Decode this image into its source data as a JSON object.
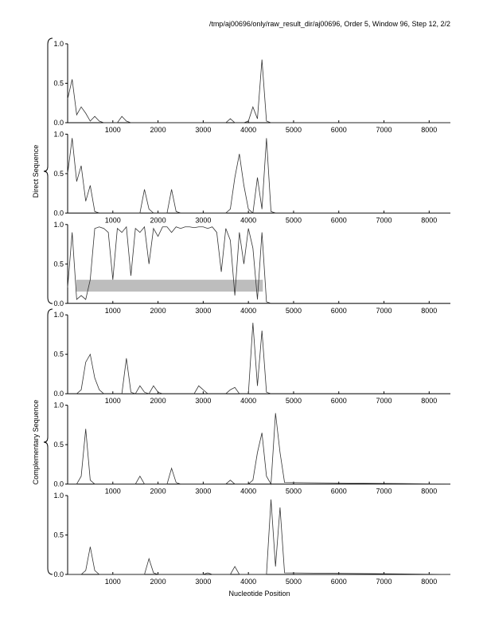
{
  "chart_data": [
    {
      "type": "line",
      "title": "/tmp/aj00696/only/raw_result_dir/aj00696, Order 5, Window 96, Step 12, 2/2",
      "color": "#333333",
      "x": [
        0,
        100,
        200,
        300,
        400,
        500,
        600,
        700,
        800,
        900,
        1000,
        1100,
        1200,
        1300,
        1400,
        1500,
        1600,
        1700,
        1800,
        1900,
        2000,
        2100,
        2200,
        2300,
        2400,
        2500,
        2600,
        2700,
        2800,
        2900,
        3000,
        3100,
        3200,
        3300,
        3400,
        3500,
        3600,
        3700,
        3800,
        3900,
        4000,
        4100,
        4200,
        4300,
        4400,
        4500,
        4600,
        4700,
        4800,
        8470
      ],
      "values": [
        0.3,
        0.55,
        0.1,
        0.2,
        0.12,
        0.02,
        0.08,
        0.02,
        0,
        0,
        0,
        0,
        0.08,
        0.02,
        0,
        0,
        0,
        0,
        0,
        0,
        0,
        0,
        0,
        0,
        0,
        0,
        0,
        0,
        0,
        0,
        0,
        0,
        0,
        0,
        0,
        0,
        0.05,
        0,
        0,
        0,
        0.02,
        0.2,
        0.05,
        0.8,
        0.02,
        0,
        0,
        0,
        0,
        0
      ],
      "xlim": [
        0,
        8470
      ],
      "ylim": [
        0,
        1
      ],
      "xticks": [
        1000,
        2000,
        3000,
        4000,
        5000,
        6000,
        7000,
        8000
      ],
      "yticks": [
        {
          "value": 0,
          "label": "0.0"
        },
        {
          "value": 0.5,
          "label": "0.5"
        },
        {
          "value": 1,
          "label": "1.0"
        }
      ]
    },
    {
      "type": "line",
      "ylabel": "Direct Sequence",
      "color": "#333333",
      "x": [
        0,
        100,
        200,
        300,
        400,
        500,
        600,
        700,
        800,
        900,
        1000,
        1100,
        1200,
        1300,
        1400,
        1500,
        1600,
        1700,
        1800,
        1900,
        2000,
        2100,
        2200,
        2300,
        2400,
        2500,
        2600,
        2700,
        2800,
        2900,
        3000,
        3100,
        3200,
        3300,
        3400,
        3500,
        3600,
        3700,
        3800,
        3900,
        4000,
        4100,
        4200,
        4300,
        4400,
        4500,
        4600,
        4700,
        4800,
        8470
      ],
      "values": [
        0.5,
        0.95,
        0.4,
        0.6,
        0.15,
        0.35,
        0.02,
        0,
        0,
        0,
        0,
        0,
        0,
        0,
        0,
        0,
        0,
        0.3,
        0.05,
        0,
        0,
        0,
        0,
        0.3,
        0.02,
        0,
        0,
        0,
        0,
        0,
        0,
        0,
        0,
        0,
        0,
        0,
        0.05,
        0.45,
        0.75,
        0.35,
        0.05,
        0,
        0.45,
        0.05,
        0.95,
        0.02,
        0,
        0,
        0,
        0
      ],
      "xlim": [
        0,
        8470
      ],
      "ylim": [
        0,
        1
      ],
      "xticks": [
        1000,
        2000,
        3000,
        4000,
        5000,
        6000,
        7000,
        8000
      ],
      "yticks": [
        {
          "value": 0,
          "label": "0.0"
        },
        {
          "value": 0.5,
          "label": "0.5"
        },
        {
          "value": 1,
          "label": "1.0"
        }
      ]
    },
    {
      "type": "line",
      "color": "#333333",
      "x": [
        0,
        100,
        200,
        300,
        400,
        500,
        600,
        700,
        800,
        900,
        1000,
        1100,
        1200,
        1300,
        1400,
        1500,
        1600,
        1700,
        1800,
        1900,
        2000,
        2100,
        2200,
        2300,
        2400,
        2500,
        2600,
        2700,
        2800,
        2900,
        3000,
        3100,
        3200,
        3300,
        3400,
        3500,
        3600,
        3700,
        3800,
        3900,
        4000,
        4100,
        4200,
        4300,
        4400,
        4500,
        4600,
        4700,
        4800,
        8470
      ],
      "values": [
        0.2,
        0.9,
        0.05,
        0.1,
        0.05,
        0.3,
        0.95,
        0.97,
        0.95,
        0.9,
        0.3,
        0.95,
        0.9,
        0.97,
        0.35,
        0.95,
        0.9,
        0.97,
        0.5,
        0.95,
        0.85,
        0.97,
        0.97,
        0.9,
        0.97,
        0.95,
        0.97,
        0.97,
        0.96,
        0.97,
        0.97,
        0.95,
        0.97,
        0.9,
        0.4,
        0.95,
        0.8,
        0.1,
        0.9,
        0.5,
        0.95,
        0.7,
        0.05,
        0.9,
        0.02,
        0,
        0,
        0,
        0,
        0
      ],
      "band": {
        "x": [
          190,
          4320
        ],
        "y": [
          0.15,
          0.3
        ]
      },
      "xlim": [
        0,
        8470
      ],
      "ylim": [
        0,
        1
      ],
      "xticks": [
        1000,
        2000,
        3000,
        4000,
        5000,
        6000,
        7000,
        8000
      ],
      "yticks": [
        {
          "value": 0,
          "label": "0.0"
        },
        {
          "value": 0.5,
          "label": "0.5"
        },
        {
          "value": 1,
          "label": "1.0"
        }
      ]
    },
    {
      "type": "line",
      "color": "#333333",
      "x": [
        0,
        100,
        200,
        300,
        400,
        500,
        600,
        700,
        800,
        900,
        1000,
        1100,
        1200,
        1300,
        1400,
        1500,
        1600,
        1700,
        1800,
        1900,
        2000,
        2100,
        2200,
        2300,
        2400,
        2500,
        2600,
        2700,
        2800,
        2900,
        3000,
        3100,
        3200,
        3300,
        3400,
        3500,
        3600,
        3700,
        3800,
        3900,
        4000,
        4100,
        4200,
        4300,
        4400,
        4500,
        4600,
        4700,
        4800,
        8470
      ],
      "values": [
        0,
        0,
        0,
        0.05,
        0.4,
        0.5,
        0.2,
        0.05,
        0,
        0,
        0,
        0,
        0,
        0.45,
        0.02,
        0,
        0.1,
        0.02,
        0,
        0.1,
        0.02,
        0,
        0,
        0,
        0,
        0,
        0,
        0,
        0,
        0.1,
        0.05,
        0,
        0,
        0,
        0,
        0,
        0.05,
        0.08,
        0,
        0,
        0,
        0.9,
        0.1,
        0.8,
        0.02,
        0,
        0,
        0,
        0,
        0
      ],
      "xlim": [
        0,
        8470
      ],
      "ylim": [
        0,
        1
      ],
      "xticks": [
        1000,
        2000,
        3000,
        4000,
        5000,
        6000,
        7000,
        8000
      ],
      "yticks": [
        {
          "value": 0,
          "label": "0.0"
        },
        {
          "value": 0.5,
          "label": "0.5"
        },
        {
          "value": 1,
          "label": "1.0"
        }
      ]
    },
    {
      "type": "line",
      "ylabel": "Complementary Sequence",
      "color": "#333333",
      "x": [
        0,
        100,
        200,
        300,
        400,
        500,
        600,
        700,
        800,
        900,
        1000,
        1100,
        1200,
        1300,
        1400,
        1500,
        1600,
        1700,
        1800,
        1900,
        2000,
        2100,
        2200,
        2300,
        2400,
        2500,
        2600,
        2700,
        2800,
        2900,
        3000,
        3100,
        3200,
        3300,
        3400,
        3500,
        3600,
        3700,
        3800,
        3900,
        4000,
        4100,
        4200,
        4300,
        4400,
        4500,
        4600,
        4700,
        4800,
        8470
      ],
      "values": [
        0,
        0,
        0,
        0.1,
        0.7,
        0.05,
        0,
        0,
        0,
        0,
        0,
        0,
        0,
        0,
        0,
        0,
        0.1,
        0,
        0,
        0,
        0,
        0,
        0,
        0.2,
        0.02,
        0,
        0,
        0,
        0,
        0,
        0,
        0,
        0,
        0,
        0,
        0,
        0.05,
        0,
        0,
        0,
        0,
        0.05,
        0.4,
        0.65,
        0.1,
        0,
        0.9,
        0.4,
        0.02,
        0
      ],
      "xlim": [
        0,
        8470
      ],
      "ylim": [
        0,
        1
      ],
      "xticks": [
        1000,
        2000,
        3000,
        4000,
        5000,
        6000,
        7000,
        8000
      ],
      "yticks": [
        {
          "value": 0,
          "label": "0.0"
        },
        {
          "value": 0.5,
          "label": "0.5"
        },
        {
          "value": 1,
          "label": "1.0"
        }
      ]
    },
    {
      "type": "line",
      "xlabel": "Nucleotide Position",
      "color": "#333333",
      "x": [
        0,
        100,
        200,
        300,
        400,
        500,
        600,
        700,
        800,
        900,
        1000,
        1100,
        1200,
        1300,
        1400,
        1500,
        1600,
        1700,
        1800,
        1900,
        2000,
        2100,
        2200,
        2300,
        2400,
        2500,
        2600,
        2700,
        2800,
        2900,
        3000,
        3100,
        3200,
        3300,
        3400,
        3500,
        3600,
        3700,
        3800,
        3900,
        4000,
        4100,
        4200,
        4300,
        4400,
        4500,
        4600,
        4700,
        4800,
        8470
      ],
      "values": [
        0,
        0,
        0,
        0,
        0.05,
        0.35,
        0.05,
        0,
        0,
        0,
        0,
        0,
        0,
        0,
        0,
        0,
        0,
        0,
        0.2,
        0.02,
        0,
        0,
        0,
        0,
        0,
        0,
        0,
        0,
        0,
        0,
        0,
        0.02,
        0,
        0,
        0,
        0,
        0,
        0.1,
        0,
        0,
        0,
        0,
        0,
        0,
        0,
        0.95,
        0.1,
        0.85,
        0.02,
        0
      ],
      "xlim": [
        0,
        8470
      ],
      "ylim": [
        0,
        1
      ],
      "xticks": [
        1000,
        2000,
        3000,
        4000,
        5000,
        6000,
        7000,
        8000
      ],
      "yticks": [
        {
          "value": 0,
          "label": "0.0"
        },
        {
          "value": 0.5,
          "label": "0.5"
        },
        {
          "value": 1,
          "label": "1.0"
        }
      ]
    }
  ]
}
